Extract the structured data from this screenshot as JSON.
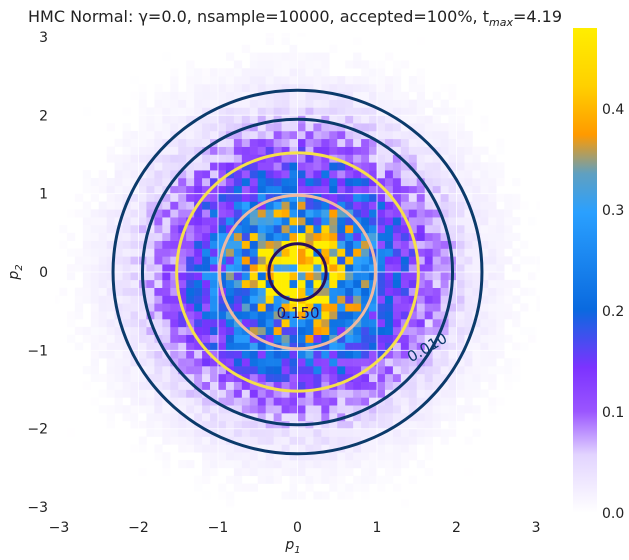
{
  "chart_data": {
    "type": "heatmap",
    "title": "HMC Normal: γ=0.0, nsample=10000, accepted=100%, t",
    "title_sub": "max",
    "title_suffix": "=4.19",
    "xlabel_main": "p",
    "xlabel_sub": "1",
    "ylabel_main": "p",
    "ylabel_sub": "2",
    "xlim": [
      -3.05,
      3.05
    ],
    "ylim": [
      -3.05,
      3.05
    ],
    "xticks": [
      -3,
      -2,
      -1,
      0,
      1,
      2,
      3
    ],
    "yticks": [
      -3,
      -2,
      -1,
      0,
      1,
      2,
      3
    ],
    "xtick_labels": [
      "−3",
      "−2",
      "−1",
      "0",
      "1",
      "2",
      "3"
    ],
    "ytick_labels": [
      "−3",
      "−2",
      "−1",
      "0",
      "1",
      "2",
      "3"
    ],
    "grid": true,
    "histogram": {
      "bins_per_axis": 80,
      "distribution": "standard 2D normal, 10000 samples",
      "max_density": 0.47
    },
    "contours": [
      {
        "radius": 2.32,
        "color": "#0b3a6b",
        "label": ""
      },
      {
        "radius": 1.95,
        "color": "#0b3a6b",
        "label": "0.010"
      },
      {
        "radius": 1.52,
        "color": "#f5e04a",
        "label": ""
      },
      {
        "radius": 0.98,
        "color": "#f0b8a0",
        "label": ""
      },
      {
        "radius": 0.36,
        "color": "#2a0f5c",
        "label": "0.150"
      }
    ],
    "colorbar": {
      "range": [
        0.0,
        0.48
      ],
      "ticks": [
        0.0,
        0.1,
        0.2,
        0.3,
        0.4
      ],
      "tick_labels": [
        "0.0",
        "0.1",
        "0.2",
        "0.3",
        "0.4"
      ],
      "colors": [
        "#ffffff",
        "#d9c4ff",
        "#8a3cff",
        "#0a6adf",
        "#2aa0ff",
        "#ff9a00",
        "#ffee00"
      ]
    }
  }
}
